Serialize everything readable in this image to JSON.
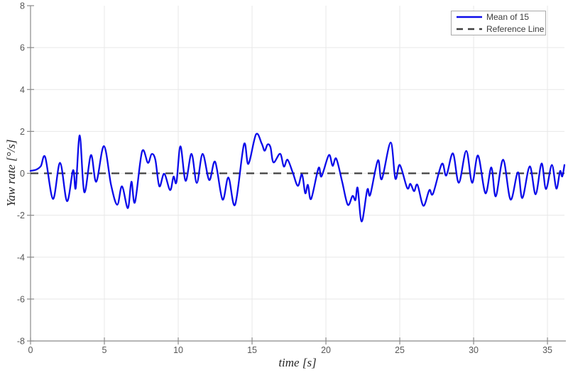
{
  "palette": {
    "background": "#ffffff",
    "grid": "#e8e8e8",
    "axis": "#8a8a8a",
    "tick_label": "#575757",
    "label_text": "#262626",
    "legend_border": "#a9a9a9"
  },
  "chart_data": {
    "type": "line",
    "title": "",
    "xlabel": "time [s]",
    "ylabel": "Yaw rate [°/s]",
    "xlim": [
      0,
      36.15
    ],
    "ylim": [
      -8,
      8
    ],
    "xticks": [
      0,
      5,
      10,
      15,
      20,
      25,
      30,
      35
    ],
    "yticks": [
      -8,
      -6,
      -4,
      -2,
      0,
      2,
      4,
      6,
      8
    ],
    "grid": true,
    "legend_position": "top-right",
    "reference_line": {
      "label": "Reference Line",
      "value": 0,
      "color": "#3f3f3f",
      "style": "dashed"
    },
    "series": [
      {
        "name": "Mean of 15",
        "color": "#0b0bea",
        "style": "solid",
        "points": [
          [
            0.0,
            0.12
          ],
          [
            0.4,
            0.18
          ],
          [
            0.7,
            0.35
          ],
          [
            1.0,
            0.76
          ],
          [
            1.52,
            -1.22
          ],
          [
            2.0,
            0.5
          ],
          [
            2.47,
            -1.33
          ],
          [
            2.88,
            0.15
          ],
          [
            3.06,
            -0.7
          ],
          [
            3.33,
            1.81
          ],
          [
            3.64,
            -0.9
          ],
          [
            4.09,
            0.87
          ],
          [
            4.45,
            -0.4
          ],
          [
            4.97,
            1.3
          ],
          [
            5.45,
            -0.55
          ],
          [
            5.87,
            -1.5
          ],
          [
            6.19,
            -0.62
          ],
          [
            6.59,
            -1.66
          ],
          [
            6.83,
            -0.4
          ],
          [
            7.07,
            -1.38
          ],
          [
            7.55,
            1.04
          ],
          [
            7.95,
            0.5
          ],
          [
            8.2,
            0.92
          ],
          [
            8.45,
            0.65
          ],
          [
            8.72,
            -0.62
          ],
          [
            9.05,
            -0.02
          ],
          [
            9.45,
            -0.8
          ],
          [
            9.68,
            -0.16
          ],
          [
            9.88,
            -0.42
          ],
          [
            10.15,
            1.29
          ],
          [
            10.5,
            -0.36
          ],
          [
            10.9,
            0.93
          ],
          [
            11.26,
            -0.46
          ],
          [
            11.65,
            0.93
          ],
          [
            12.1,
            -0.32
          ],
          [
            12.5,
            0.55
          ],
          [
            13.0,
            -1.25
          ],
          [
            13.4,
            -0.2
          ],
          [
            13.85,
            -1.5
          ],
          [
            14.45,
            1.38
          ],
          [
            14.75,
            0.45
          ],
          [
            15.27,
            1.86
          ],
          [
            15.65,
            1.42
          ],
          [
            15.85,
            1.08
          ],
          [
            16.05,
            1.38
          ],
          [
            16.25,
            1.24
          ],
          [
            16.45,
            0.52
          ],
          [
            16.9,
            0.93
          ],
          [
            17.15,
            0.32
          ],
          [
            17.4,
            0.65
          ],
          [
            17.75,
            0.05
          ],
          [
            18.1,
            -0.6
          ],
          [
            18.38,
            -0.05
          ],
          [
            18.6,
            -0.95
          ],
          [
            18.78,
            -0.55
          ],
          [
            19.0,
            -1.22
          ],
          [
            19.5,
            0.25
          ],
          [
            19.7,
            -0.15
          ],
          [
            20.2,
            0.87
          ],
          [
            20.45,
            0.36
          ],
          [
            20.7,
            0.7
          ],
          [
            21.1,
            -0.4
          ],
          [
            21.48,
            -1.5
          ],
          [
            21.8,
            -1.08
          ],
          [
            22.0,
            -1.28
          ],
          [
            22.15,
            -0.7
          ],
          [
            22.42,
            -2.3
          ],
          [
            22.8,
            -0.78
          ],
          [
            23.0,
            -1.02
          ],
          [
            23.52,
            0.62
          ],
          [
            23.78,
            -0.28
          ],
          [
            24.38,
            1.47
          ],
          [
            24.7,
            -0.25
          ],
          [
            25.0,
            0.4
          ],
          [
            25.5,
            -0.7
          ],
          [
            25.72,
            -0.5
          ],
          [
            25.97,
            -0.85
          ],
          [
            26.2,
            -0.55
          ],
          [
            26.6,
            -1.55
          ],
          [
            27.0,
            -0.8
          ],
          [
            27.25,
            -0.97
          ],
          [
            27.85,
            0.45
          ],
          [
            28.15,
            -0.1
          ],
          [
            28.6,
            0.95
          ],
          [
            29.0,
            -0.45
          ],
          [
            29.5,
            1.07
          ],
          [
            29.9,
            -0.45
          ],
          [
            30.3,
            0.85
          ],
          [
            30.8,
            -0.95
          ],
          [
            31.2,
            0.28
          ],
          [
            31.5,
            -1.1
          ],
          [
            32.0,
            0.65
          ],
          [
            32.5,
            -1.25
          ],
          [
            33.0,
            0.05
          ],
          [
            33.3,
            -1.18
          ],
          [
            33.8,
            0.33
          ],
          [
            34.2,
            -1.0
          ],
          [
            34.6,
            0.47
          ],
          [
            34.9,
            -0.75
          ],
          [
            35.3,
            0.4
          ],
          [
            35.6,
            -0.73
          ],
          [
            35.85,
            0.1
          ],
          [
            36.0,
            -0.15
          ],
          [
            36.15,
            0.4
          ]
        ]
      }
    ]
  }
}
